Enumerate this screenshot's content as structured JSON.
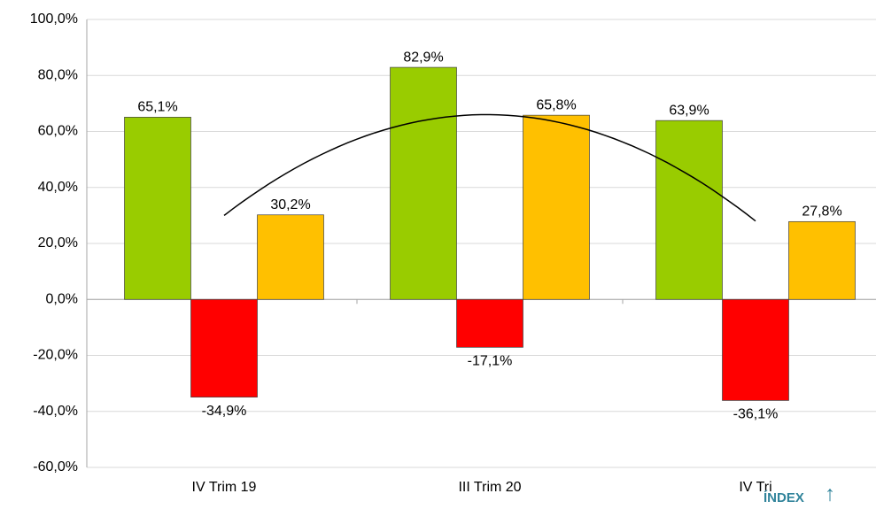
{
  "chart_data": {
    "type": "bar",
    "categories": [
      "IV Trim 19",
      "III Trim 20",
      "IV Tri"
    ],
    "series": [
      {
        "color": "#99cc00",
        "values": [
          65.1,
          82.9,
          63.9
        ],
        "value_labels": [
          "65,1%",
          "82,9%",
          "63,9%"
        ]
      },
      {
        "color": "#ff0000",
        "values": [
          -34.9,
          -17.1,
          -36.1
        ],
        "value_labels": [
          "-34,9%",
          "-17,1%",
          "-36,1%"
        ]
      },
      {
        "color": "#ffc000",
        "values": [
          30.2,
          65.8,
          27.8
        ],
        "value_labels": [
          "30,2%",
          "65,8%",
          "27,8%"
        ]
      }
    ],
    "trendline": {
      "color": "#000000",
      "values": [
        30,
        66,
        28
      ]
    },
    "ylim": [
      -60,
      100
    ],
    "yticks": [
      {
        "value": -60,
        "label": "-60,0%"
      },
      {
        "value": -40,
        "label": "-40,0%"
      },
      {
        "value": -20,
        "label": "-20,0%"
      },
      {
        "value": 0,
        "label": "0,0%"
      },
      {
        "value": 20,
        "label": "20,0%"
      },
      {
        "value": 40,
        "label": "40,0%"
      },
      {
        "value": 60,
        "label": "60,0%"
      },
      {
        "value": 80,
        "label": "80,0%"
      },
      {
        "value": 100,
        "label": "100,0%"
      }
    ],
    "grid": true
  },
  "link": {
    "label": "ÍNDEX",
    "icon": "↑"
  }
}
